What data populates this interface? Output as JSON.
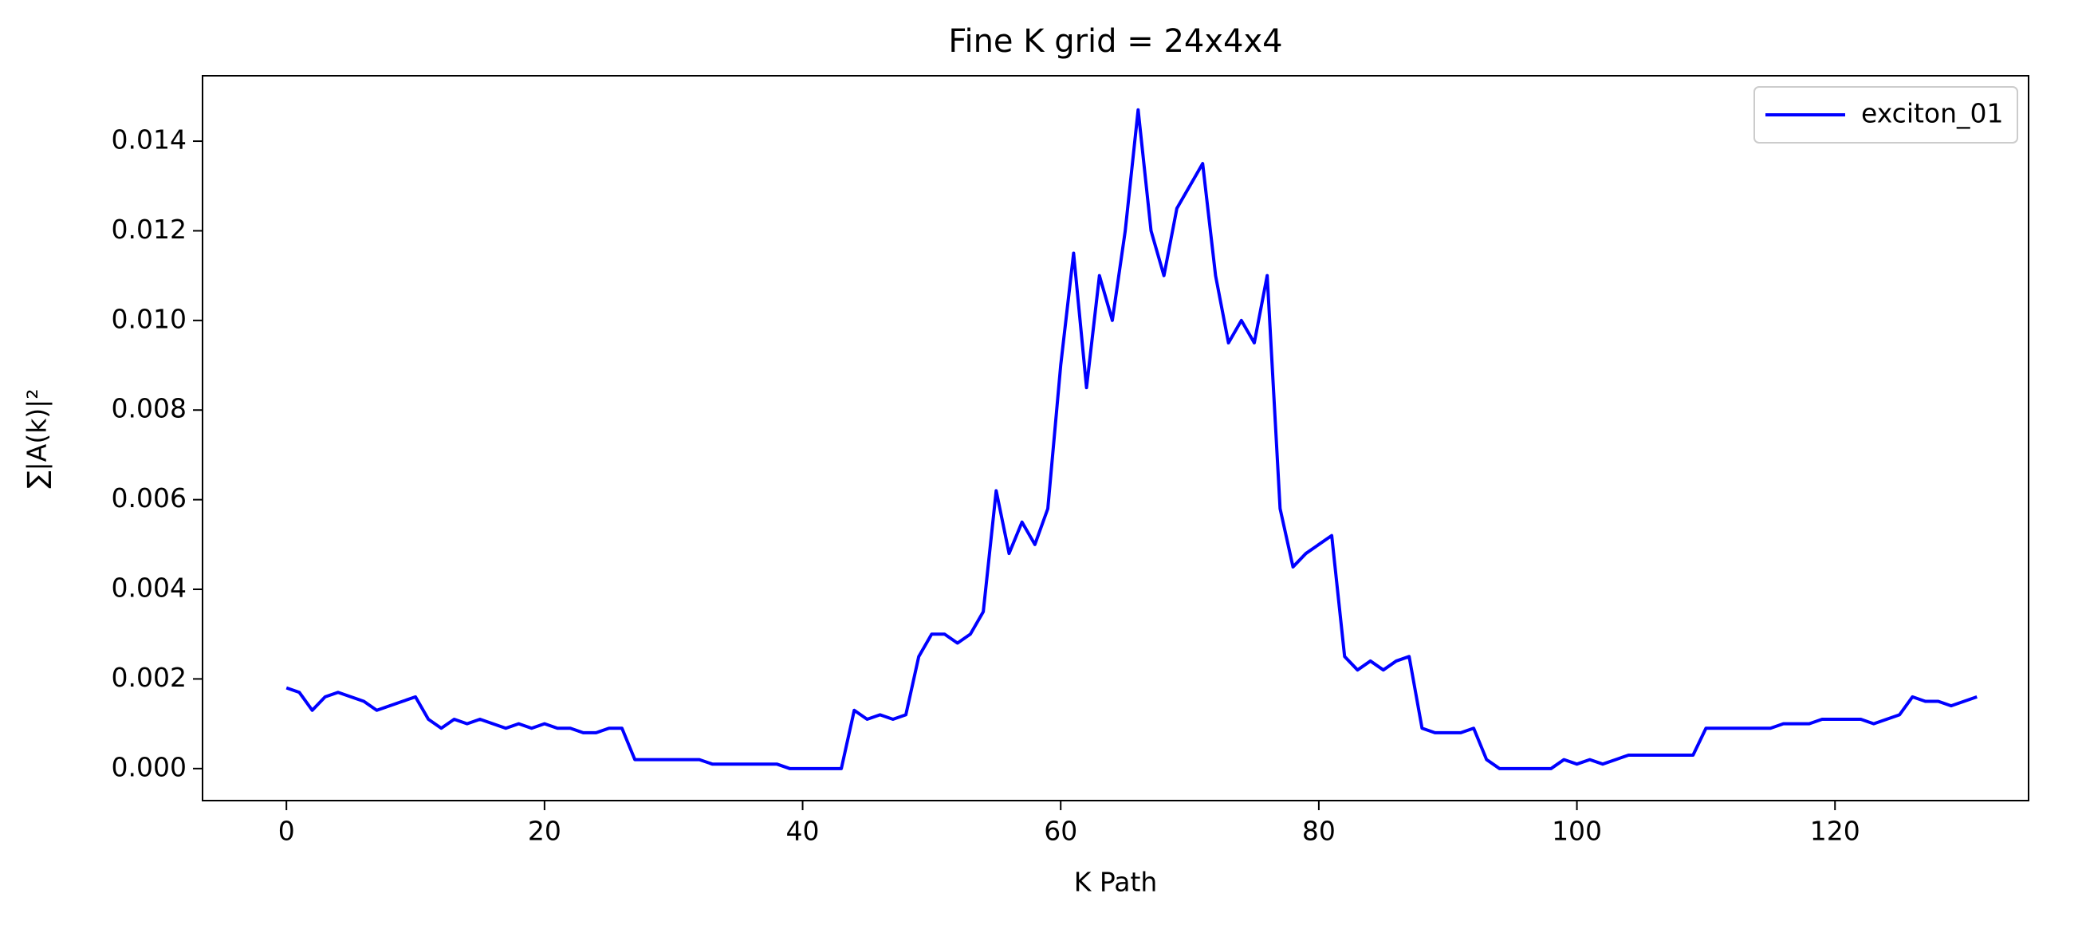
{
  "chart_data": {
    "type": "line",
    "title": "Fine K grid = 24x4x4",
    "x_label": "K Path",
    "y_label": "∑|A(k)|²",
    "x": [
      0,
      1,
      2,
      3,
      4,
      5,
      6,
      7,
      8,
      9,
      10,
      11,
      12,
      13,
      14,
      15,
      16,
      17,
      18,
      19,
      20,
      21,
      22,
      23,
      24,
      25,
      26,
      27,
      28,
      29,
      30,
      31,
      32,
      33,
      34,
      35,
      36,
      37,
      38,
      39,
      40,
      41,
      42,
      43,
      44,
      45,
      46,
      47,
      48,
      49,
      50,
      51,
      52,
      53,
      54,
      55,
      56,
      57,
      58,
      59,
      60,
      61,
      62,
      63,
      64,
      65,
      66,
      67,
      68,
      69,
      70,
      71,
      72,
      73,
      74,
      75,
      76,
      77,
      78,
      79,
      80,
      81,
      82,
      83,
      84,
      85,
      86,
      87,
      88,
      89,
      90,
      91,
      92,
      93,
      94,
      95,
      96,
      97,
      98,
      99,
      100,
      101,
      102,
      103,
      104,
      105,
      106,
      107,
      108,
      109,
      110,
      111,
      112,
      113,
      114,
      115,
      116,
      117,
      118,
      119,
      120,
      121,
      122,
      123,
      124,
      125,
      126,
      127,
      128,
      129,
      130,
      131
    ],
    "series": [
      {
        "name": "exciton_01",
        "color": "#0000ff",
        "values": [
          0.0018,
          0.0017,
          0.0013,
          0.0016,
          0.0017,
          0.0016,
          0.0015,
          0.0013,
          0.0014,
          0.0015,
          0.0016,
          0.0011,
          0.0009,
          0.0011,
          0.001,
          0.0011,
          0.001,
          0.0009,
          0.001,
          0.0009,
          0.001,
          0.0009,
          0.0009,
          0.0008,
          0.0008,
          0.0009,
          0.0009,
          0.0002,
          0.0002,
          0.0002,
          0.0002,
          0.0002,
          0.0002,
          0.0001,
          0.0001,
          0.0001,
          0.0001,
          0.0001,
          0.0001,
          0,
          0,
          0,
          0,
          0,
          0.0013,
          0.0011,
          0.0012,
          0.0011,
          0.0012,
          0.0025,
          0.003,
          0.003,
          0.0028,
          0.003,
          0.0035,
          0.0062,
          0.0048,
          0.0055,
          0.005,
          0.0058,
          0.009,
          0.0115,
          0.0085,
          0.011,
          0.01,
          0.012,
          0.0147,
          0.012,
          0.011,
          0.0125,
          0.013,
          0.0135,
          0.011,
          0.0095,
          0.01,
          0.0095,
          0.011,
          0.0058,
          0.0045,
          0.0048,
          0.005,
          0.0052,
          0.0025,
          0.0022,
          0.0024,
          0.0022,
          0.0024,
          0.0025,
          0.0009,
          0.0008,
          0.0008,
          0.0008,
          0.0009,
          0.0002,
          0,
          0,
          0,
          0,
          0,
          0.0002,
          0.0001,
          0.0002,
          0.0001,
          0.0002,
          0.0003,
          0.0003,
          0.0003,
          0.0003,
          0.0003,
          0.0003,
          0.0009,
          0.0009,
          0.0009,
          0.0009,
          0.0009,
          0.0009,
          0.001,
          0.001,
          0.001,
          0.0011,
          0.0011,
          0.0011,
          0.0011,
          0.001,
          0.0011,
          0.0012,
          0.0016,
          0.0015,
          0.0015,
          0.0014,
          0.0015,
          0.0016
        ]
      }
    ],
    "xlim": [
      -6.5,
      135
    ],
    "ylim": [
      -0.000715,
      0.01546
    ],
    "xticks": [
      0,
      20,
      40,
      60,
      80,
      100,
      120
    ],
    "yticks": [
      {
        "value": 0,
        "label": "0.000"
      },
      {
        "value": 0.002,
        "label": "0.002"
      },
      {
        "value": 0.004,
        "label": "0.004"
      },
      {
        "value": 0.006,
        "label": "0.006"
      },
      {
        "value": 0.008,
        "label": "0.008"
      },
      {
        "value": 0.01,
        "label": "0.010"
      },
      {
        "value": 0.012,
        "label": "0.012"
      },
      {
        "value": 0.014,
        "label": "0.014"
      }
    ],
    "legend": "upper right"
  }
}
